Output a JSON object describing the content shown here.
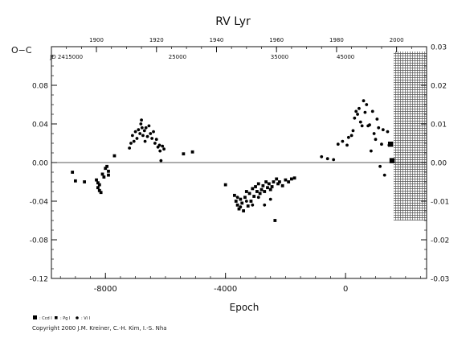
{
  "chart_data": {
    "type": "scatter",
    "title": "RV  Lyr",
    "xlabel": "Epoch",
    "ylabel": "O−C",
    "xlim": [
      -9800,
      2700
    ],
    "ylim_left": [
      -0.12,
      0.12
    ],
    "ylim_right": [
      -0.03,
      0.03
    ],
    "x_ticks": [
      "-8000",
      "-4000",
      "0"
    ],
    "x_tick_values": [
      -8000,
      -4000,
      0
    ],
    "y_ticks_left": [
      "-0.12",
      "-0.08",
      "-0.04",
      "0.00",
      "0.04",
      "0.08"
    ],
    "y_tick_values_left": [
      -0.12,
      -0.08,
      -0.04,
      0.0,
      0.04,
      0.08
    ],
    "y_ticks_right": [
      "-0.03",
      "-0.02",
      "-0.01",
      "0.00",
      "0.01",
      "0.02",
      "0.03"
    ],
    "y_tick_values_right": [
      -0.03,
      -0.02,
      -0.01,
      0.0,
      0.01,
      0.02,
      0.03
    ],
    "top_year_ticks": [
      "1900",
      "1920",
      "1940",
      "1960",
      "1980",
      "2000"
    ],
    "top_year_epochs": [
      -8300,
      -6300,
      -4300,
      -2300,
      -300,
      1700
    ],
    "jd_labels": [
      "JD 2415000",
      "25000",
      "35000",
      "45000"
    ],
    "jd_label_epochs": [
      -9300,
      -5600,
      -2200,
      0
    ],
    "shaded_region": [
      1600,
      2700
    ],
    "grid": false,
    "legend_position": "bottom-left",
    "legend": [
      {
        "marker": "square-large",
        "label": ": Ccd I"
      },
      {
        "marker": "square",
        "label": ": Pg I"
      },
      {
        "marker": "circle",
        "label": ": Vi I"
      }
    ],
    "series": [
      {
        "name": ": Ccd I",
        "marker": "square-large",
        "x": [
          1500,
          1550
        ],
        "y": [
          0.019,
          0.002
        ]
      },
      {
        "name": ": Pg I",
        "marker": "square",
        "points": [
          [
            -9100,
            -0.01
          ],
          [
            -9000,
            -0.019
          ],
          [
            -8700,
            -0.02
          ],
          [
            -8300,
            -0.018
          ],
          [
            -8250,
            -0.021
          ],
          [
            -8250,
            -0.026
          ],
          [
            -8200,
            -0.023
          ],
          [
            -8200,
            -0.029
          ],
          [
            -8150,
            -0.031
          ],
          [
            -8100,
            -0.012
          ],
          [
            -8050,
            -0.015
          ],
          [
            -8000,
            -0.006
          ],
          [
            -7950,
            -0.004
          ],
          [
            -7900,
            -0.009
          ],
          [
            -7900,
            -0.013
          ],
          [
            -7700,
            0.007
          ],
          [
            -5400,
            0.009
          ],
          [
            -5100,
            0.011
          ],
          [
            -4000,
            -0.023
          ],
          [
            -3700,
            -0.034
          ],
          [
            -3650,
            -0.04
          ],
          [
            -3600,
            -0.044
          ],
          [
            -3550,
            -0.048
          ],
          [
            -3500,
            -0.038
          ],
          [
            -3450,
            -0.042
          ],
          [
            -3400,
            -0.05
          ],
          [
            -3350,
            -0.036
          ],
          [
            -3300,
            -0.03
          ],
          [
            -3250,
            -0.045
          ],
          [
            -3200,
            -0.032
          ],
          [
            -3150,
            -0.04
          ],
          [
            -3100,
            -0.027
          ],
          [
            -3050,
            -0.035
          ],
          [
            -3000,
            -0.025
          ],
          [
            -2950,
            -0.03
          ],
          [
            -2900,
            -0.022
          ],
          [
            -2850,
            -0.032
          ],
          [
            -2800,
            -0.028
          ],
          [
            -2750,
            -0.024
          ],
          [
            -2700,
            -0.03
          ],
          [
            -2650,
            -0.02
          ],
          [
            -2600,
            -0.026
          ],
          [
            -2550,
            -0.022
          ],
          [
            -2500,
            -0.028
          ],
          [
            -2450,
            -0.025
          ],
          [
            -2400,
            -0.02
          ],
          [
            -2350,
            -0.06
          ],
          [
            -2300,
            -0.017
          ],
          [
            -2250,
            -0.022
          ],
          [
            -2200,
            -0.02
          ],
          [
            -2100,
            -0.024
          ],
          [
            -2000,
            -0.018
          ],
          [
            -1900,
            -0.02
          ],
          [
            -1800,
            -0.017
          ],
          [
            -1700,
            -0.016
          ]
        ]
      },
      {
        "name": ": Vi I",
        "marker": "circle",
        "points": [
          [
            -7200,
            0.015
          ],
          [
            -7150,
            0.02
          ],
          [
            -7100,
            0.028
          ],
          [
            -7050,
            0.022
          ],
          [
            -7000,
            0.032
          ],
          [
            -6950,
            0.025
          ],
          [
            -6900,
            0.034
          ],
          [
            -6850,
            0.03
          ],
          [
            -6820,
            0.04
          ],
          [
            -6800,
            0.044
          ],
          [
            -6780,
            0.036
          ],
          [
            -6750,
            0.028
          ],
          [
            -6700,
            0.033
          ],
          [
            -6680,
            0.022
          ],
          [
            -6650,
            0.036
          ],
          [
            -6600,
            0.027
          ],
          [
            -6550,
            0.038
          ],
          [
            -6500,
            0.03
          ],
          [
            -6450,
            0.025
          ],
          [
            -6400,
            0.032
          ],
          [
            -6350,
            0.02
          ],
          [
            -6300,
            0.024
          ],
          [
            -6250,
            0.016
          ],
          [
            -6200,
            0.018
          ],
          [
            -6180,
            0.012
          ],
          [
            -6150,
            0.002
          ],
          [
            -6100,
            0.017
          ],
          [
            -6050,
            0.014
          ],
          [
            -3600,
            -0.036
          ],
          [
            -3500,
            -0.046
          ],
          [
            -3300,
            -0.04
          ],
          [
            -3100,
            -0.044
          ],
          [
            -2900,
            -0.036
          ],
          [
            -2700,
            -0.044
          ],
          [
            -2500,
            -0.038
          ],
          [
            -800,
            0.006
          ],
          [
            -600,
            0.004
          ],
          [
            -400,
            0.003
          ],
          [
            -250,
            0.019
          ],
          [
            -100,
            0.022
          ],
          [
            50,
            0.018
          ],
          [
            100,
            0.026
          ],
          [
            200,
            0.028
          ],
          [
            250,
            0.033
          ],
          [
            300,
            0.046
          ],
          [
            350,
            0.053
          ],
          [
            400,
            0.05
          ],
          [
            450,
            0.056
          ],
          [
            500,
            0.042
          ],
          [
            550,
            0.038
          ],
          [
            600,
            0.064
          ],
          [
            650,
            0.052
          ],
          [
            700,
            0.06
          ],
          [
            750,
            0.038
          ],
          [
            800,
            0.039
          ],
          [
            850,
            0.012
          ],
          [
            900,
            0.053
          ],
          [
            950,
            0.03
          ],
          [
            1000,
            0.024
          ],
          [
            1050,
            0.045
          ],
          [
            1100,
            0.036
          ],
          [
            1150,
            -0.004
          ],
          [
            1200,
            0.019
          ],
          [
            1250,
            0.034
          ],
          [
            1300,
            -0.013
          ],
          [
            1400,
            0.032
          ],
          [
            1450,
            0.018
          ]
        ]
      }
    ]
  },
  "footer": {
    "copyright": "Copyright 2000 J.M. Kreiner, C.-H. Kim, I.-S. Nha"
  }
}
